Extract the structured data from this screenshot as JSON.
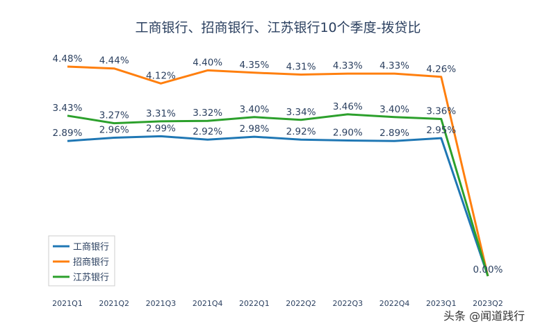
{
  "chart_data": {
    "type": "line",
    "title": "工商银行、招商银行、江苏银行10个季度-拨贷比",
    "xlabel": "",
    "ylabel": "",
    "ylim": [
      0,
      4.6
    ],
    "grid": false,
    "legend_position": "bottom-left",
    "categories": [
      "2021Q1",
      "2021Q2",
      "2021Q3",
      "2021Q4",
      "2022Q1",
      "2022Q2",
      "2022Q3",
      "2022Q4",
      "2023Q1",
      "2023Q2"
    ],
    "series": [
      {
        "name": "工商银行",
        "color": "#1f77b4",
        "values": [
          2.89,
          2.96,
          2.99,
          2.92,
          2.98,
          2.92,
          2.9,
          2.89,
          2.95,
          0.0
        ],
        "labels": [
          "2.89%",
          "2.96%",
          "2.99%",
          "2.92%",
          "2.98%",
          "2.92%",
          "2.90%",
          "2.89%",
          "2.95%",
          ""
        ]
      },
      {
        "name": "招商银行",
        "color": "#ff7f0e",
        "values": [
          4.48,
          4.44,
          4.12,
          4.4,
          4.35,
          4.31,
          4.33,
          4.33,
          4.26,
          0.0
        ],
        "labels": [
          "4.48%",
          "4.44%",
          "4.12%",
          "4.40%",
          "4.35%",
          "4.31%",
          "4.33%",
          "4.33%",
          "4.26%",
          ""
        ]
      },
      {
        "name": "江苏银行",
        "color": "#2ca02c",
        "values": [
          3.43,
          3.27,
          3.31,
          3.32,
          3.4,
          3.34,
          3.46,
          3.4,
          3.36,
          0.0
        ],
        "labels": [
          "3.43%",
          "3.27%",
          "3.31%",
          "3.32%",
          "3.40%",
          "3.34%",
          "3.46%",
          "3.40%",
          "3.36%",
          "0.00%"
        ]
      }
    ]
  },
  "watermark": "头条 @闻道践行"
}
